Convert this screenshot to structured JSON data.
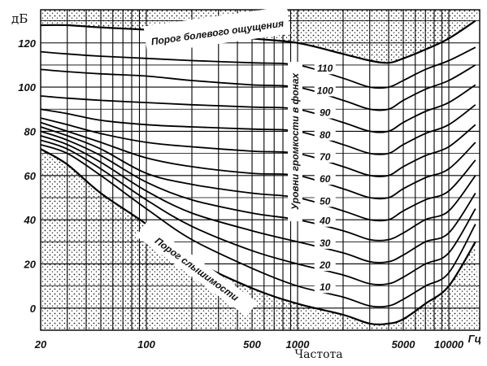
{
  "chart_data": {
    "type": "line",
    "title": "",
    "xlabel": "Частота",
    "ylabel": "дБ",
    "x_unit_label": "Гц",
    "x_scale": "log",
    "xlim": [
      20,
      16000
    ],
    "ylim": [
      -10,
      135
    ],
    "y_ticks": [
      "0",
      "20",
      "40",
      "60",
      "80",
      "100",
      "120"
    ],
    "y_tick_values": [
      0,
      20,
      40,
      60,
      80,
      100,
      120
    ],
    "x_ticks": [
      "20",
      "100",
      "500",
      "1000",
      "5000",
      "10000"
    ],
    "x_tick_values": [
      20,
      100,
      500,
      1000,
      5000,
      10000
    ],
    "grid": true,
    "pain_threshold_label": "Порог болевого ощущения",
    "hearing_threshold_label": "Порог слышимости",
    "loudness_levels_label": "Уровни громкости в фонах",
    "phon_labels": [
      "110",
      "100",
      "90",
      "80",
      "70",
      "60",
      "50",
      "40",
      "30",
      "20",
      "10"
    ],
    "x": [
      20,
      30,
      50,
      100,
      200,
      500,
      1000,
      2000,
      3000,
      4000,
      5000,
      7000,
      10000,
      15000
    ],
    "series": [
      {
        "name": "Порог болевого ощущения",
        "values": [
          128,
          128,
          127,
          126,
          125,
          122,
          120,
          115,
          112,
          111,
          113,
          117,
          122,
          130
        ]
      },
      {
        "name": "110",
        "values": [
          116,
          115,
          114,
          113,
          112,
          111,
          110,
          104,
          100,
          100,
          103,
          108,
          112,
          118
        ]
      },
      {
        "name": "100",
        "values": [
          108,
          107,
          106,
          105,
          103,
          101,
          100,
          94,
          90,
          90,
          94,
          99,
          103,
          110
        ]
      },
      {
        "name": "90",
        "values": [
          96,
          95,
          94,
          93,
          92,
          91,
          90,
          84,
          80,
          80,
          84,
          89,
          93,
          101
        ]
      },
      {
        "name": "80",
        "values": [
          90,
          88,
          85,
          83,
          82,
          81,
          80,
          74,
          70,
          70,
          74,
          79,
          83,
          92
        ]
      },
      {
        "name": "70",
        "values": [
          86,
          83,
          79,
          75,
          73,
          71,
          70,
          64,
          60,
          60,
          64,
          69,
          73,
          83
        ]
      },
      {
        "name": "60",
        "values": [
          84,
          80,
          75,
          68,
          64,
          61,
          60,
          54,
          50,
          50,
          54,
          59,
          63,
          75
        ]
      },
      {
        "name": "50",
        "values": [
          82,
          78,
          72,
          61,
          56,
          52,
          50,
          44,
          40,
          40,
          44,
          49,
          53,
          67
        ]
      },
      {
        "name": "40",
        "values": [
          80,
          76,
          69,
          57,
          49,
          43,
          40,
          35,
          31,
          31,
          34,
          40,
          44,
          60
        ]
      },
      {
        "name": "30",
        "values": [
          78,
          74,
          66,
          53,
          43,
          35,
          30,
          25,
          21,
          21,
          24,
          30,
          34,
          52
        ]
      },
      {
        "name": "20",
        "values": [
          76,
          72,
          63,
          49,
          37,
          26,
          20,
          15,
          11,
          11,
          14,
          20,
          25,
          45
        ]
      },
      {
        "name": "10",
        "values": [
          74,
          70,
          60,
          45,
          31,
          18,
          10,
          5,
          1,
          1,
          4,
          10,
          16,
          38
        ]
      },
      {
        "name": "Порог слышимости",
        "values": [
          72,
          65,
          52,
          38,
          22,
          9,
          2,
          -3,
          -7,
          -7,
          -5,
          2,
          10,
          30
        ]
      }
    ]
  }
}
